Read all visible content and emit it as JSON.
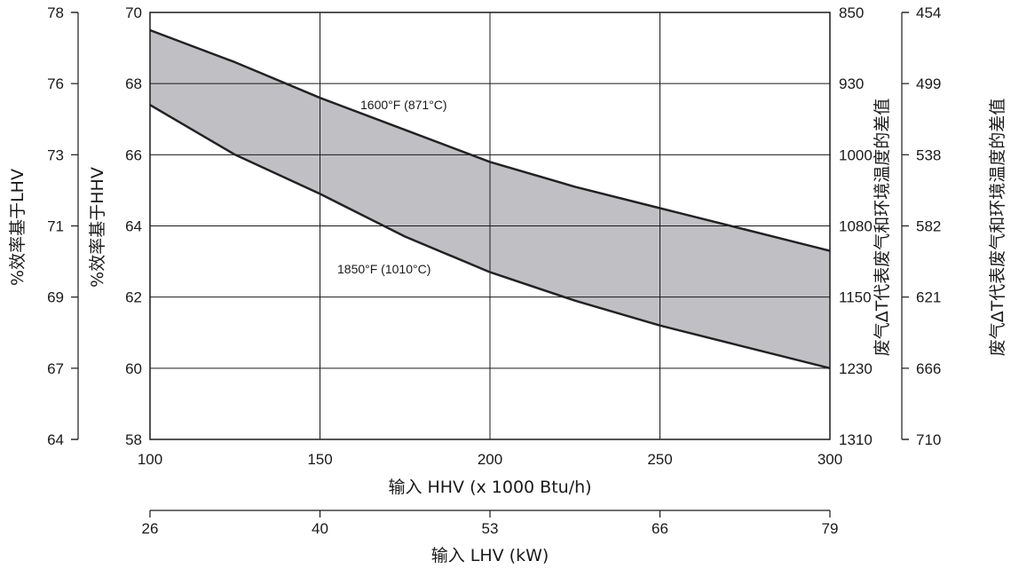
{
  "chart_data": {
    "type": "area",
    "x_axis_primary": {
      "label": "输入 HHV (x 1000 Btu/h)",
      "range": [
        100,
        300
      ],
      "ticks": [
        "100",
        "150",
        "200",
        "250",
        "300"
      ]
    },
    "x_axis_secondary": {
      "label": "输入 LHV (kW)",
      "ticks": [
        "26",
        "40",
        "53",
        "66",
        "79"
      ]
    },
    "y_axis_left_inner": {
      "label": "%效率基于HHV",
      "range": [
        58,
        70
      ],
      "ticks": [
        "70",
        "68",
        "66",
        "64",
        "62",
        "60",
        "58"
      ]
    },
    "y_axis_left_outer": {
      "label": "%效率基于LHV",
      "ticks": [
        "78",
        "76",
        "73",
        "71",
        "69",
        "67",
        "64"
      ]
    },
    "y_axis_right_inner": {
      "label": "废气ΔT代表废气和环境温度的差值",
      "ticks": [
        "850",
        "930",
        "1000",
        "1080",
        "1150",
        "1230",
        "1310"
      ]
    },
    "y_axis_right_outer": {
      "label": "废气ΔT代表废气和环境温度的差值",
      "ticks": [
        "454",
        "499",
        "538",
        "582",
        "621",
        "666",
        "710"
      ]
    },
    "series": [
      {
        "name": "1600°F (871°C)",
        "x": [
          100,
          125,
          150,
          175,
          200,
          225,
          250,
          275,
          300
        ],
        "y": [
          69.5,
          68.6,
          67.6,
          66.7,
          65.8,
          65.1,
          64.5,
          63.9,
          63.3
        ]
      },
      {
        "name": "1850°F (1010°C)",
        "x": [
          100,
          125,
          150,
          175,
          200,
          225,
          250,
          275,
          300
        ],
        "y": [
          67.4,
          66.0,
          64.9,
          63.7,
          62.7,
          61.9,
          61.2,
          60.6,
          60.0
        ]
      }
    ],
    "fill_color": "#c0c0c4",
    "line_color": "#222222",
    "grid": true
  }
}
